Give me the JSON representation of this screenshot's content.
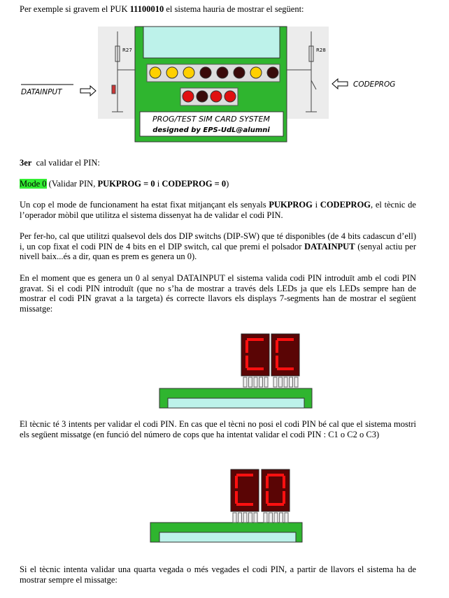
{
  "paragraphs": [
    [
      {
        "text": "Per exemple si gravem el PUK "
      },
      {
        "text": "11100010",
        "bold": true
      },
      {
        "text": " el sistema hauria de mostrar el següent:"
      }
    ],
    [
      {
        "text": "3er",
        "bold": true
      },
      {
        "text": "  cal validar el PIN:"
      }
    ],
    [
      {
        "text": "Mode 0",
        "highlight": "#33ee33"
      },
      {
        "text": " (Validar PIN, "
      },
      {
        "text": "PUKPROG = 0",
        "bold": true
      },
      {
        "text": " i "
      },
      {
        "text": "CODEPROG = 0",
        "bold": true
      },
      {
        "text": ")"
      }
    ],
    [
      {
        "text": "Un cop el mode de funcionament ha estat fixat mitjançant els senyals "
      },
      {
        "text": "PUKPROG",
        "bold": true
      },
      {
        "text": " i "
      },
      {
        "text": "CODEPROG",
        "bold": true
      },
      {
        "text": ", el tècnic de l’operador mòbil que utilitza el sistema dissenyat ha de validar el codi PIN."
      }
    ],
    [
      {
        "text": "Per fer-ho, cal que utilitzi qualsevol dels dos DIP switchs (DIP-SW) que té disponibles (de 4 bits cadascun d’ell) i, un cop fixat el codi PIN de 4 bits en el DIP switch, cal que premi el polsador "
      },
      {
        "text": "DATAINPUT",
        "bold": true
      },
      {
        "text": " (senyal actiu per nivell baix...és a dir, quan es prem es genera un 0)."
      }
    ],
    [
      {
        "text": "En el moment que es genera un 0 al senyal DATAINPUT el sistema valida codi PIN introduït amb el codi PIN gravat. Si el codi PIN introduït (que no s’ha de mostrar a través dels LEDs ja que els LEDs sempre han de mostrar el codi PIN gravat a la targeta) és correcte llavors els displays 7-segments han de mostrar el següent missatge:"
      }
    ],
    [
      {
        "text": "El tècnic té 3 intents per validar el codi PIN. En cas que el tècni no posi el codi PIN bé cal que el sistema mostri els següent missatge (en funció del número de cops que ha intentat validar el codi PIN : C1 o C2 o C3)"
      }
    ],
    [
      {
        "text": "Si el tècnic intenta validar una quarta vegada o més vegades el codi PIN, a partir de llavors el sistema ha de mostrar sempre el missatge:"
      }
    ]
  ],
  "diagram": {
    "r_left": "R27",
    "r_right": "R28",
    "input_left": "DATAINPUT",
    "input_right": "CODEPROG",
    "board_title": "PROG/TEST SIM CARD SYSTEM",
    "board_credit": "designed by EPS-UdL@alumni"
  }
}
